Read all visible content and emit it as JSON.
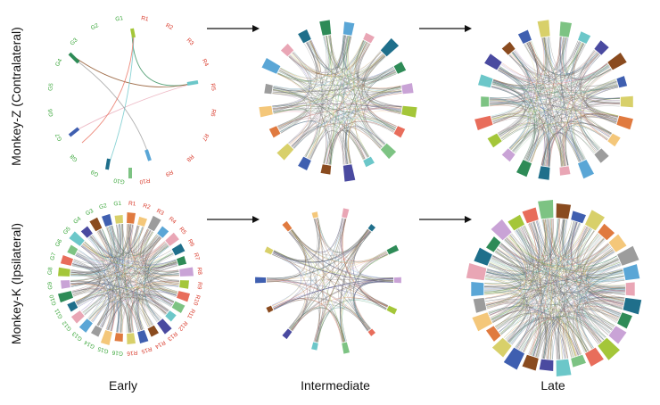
{
  "rows": [
    {
      "label": "Monkey-Z (Contralateral)"
    },
    {
      "label": "Monkey-K (Ipsilateral)"
    }
  ],
  "columns": [
    {
      "label": "Early"
    },
    {
      "label": "Intermediate"
    },
    {
      "label": "Late"
    }
  ],
  "labels": {
    "monkey_z_early": {
      "green": [
        "G1",
        "G2",
        "G3",
        "G4",
        "G5",
        "G6",
        "G7",
        "G8",
        "G9",
        "G10"
      ],
      "red": [
        "R1",
        "R2",
        "R3",
        "R4",
        "R5",
        "R6",
        "R7",
        "R8",
        "R9",
        "R10"
      ]
    },
    "monkey_k_early": {
      "green": [
        "G1",
        "G2",
        "G3",
        "G4",
        "G5",
        "G6",
        "G7",
        "G8",
        "G9",
        "G10",
        "G11",
        "G12",
        "G13",
        "G14",
        "G15",
        "G16"
      ],
      "red": [
        "R1",
        "R2",
        "R3",
        "R4",
        "R5",
        "R6",
        "R7",
        "R8",
        "R9",
        "R10",
        "R11",
        "R12",
        "R13",
        "R14",
        "R15",
        "R16"
      ]
    }
  },
  "colors": {
    "label_green": "#3aa63a",
    "label_red": "#d93a2b",
    "arrow": "#111111",
    "segment_palette": [
      "#2e8b57",
      "#5aa6d6",
      "#e07a3f",
      "#8a4b1f",
      "#7dc383",
      "#c9a3d6",
      "#e9a6b5",
      "#f4c77a",
      "#3f5fb0",
      "#6cc7c9",
      "#a4c639",
      "#1f6f8b",
      "#9c9c9c",
      "#d8d06a",
      "#4a4aa0",
      "#e86d5b"
    ]
  }
}
